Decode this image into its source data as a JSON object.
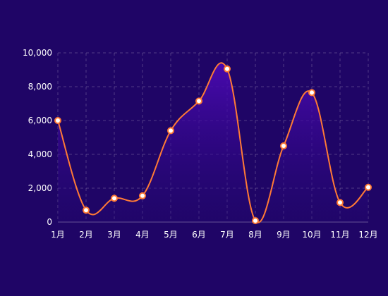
{
  "chart_data": {
    "type": "area",
    "categories": [
      "1月",
      "2月",
      "3月",
      "4月",
      "5月",
      "6月",
      "7月",
      "8月",
      "9月",
      "10月",
      "11月",
      "12月"
    ],
    "series": [
      {
        "values": [
          6000,
          700,
          1400,
          1550,
          5400,
          7150,
          9050,
          80,
          4500,
          7650,
          1150,
          2050
        ]
      }
    ],
    "ylim": [
      0,
      10000
    ],
    "yticks": [
      "0",
      "2,000",
      "4,000",
      "6,000",
      "8,000",
      "10,000"
    ],
    "grid": true,
    "colors": {
      "background": "#1f0566",
      "line": "#ff7a35",
      "point_fill": "#ffffff",
      "area_top": "#4b09b3",
      "area_bottom": "#240674"
    }
  }
}
